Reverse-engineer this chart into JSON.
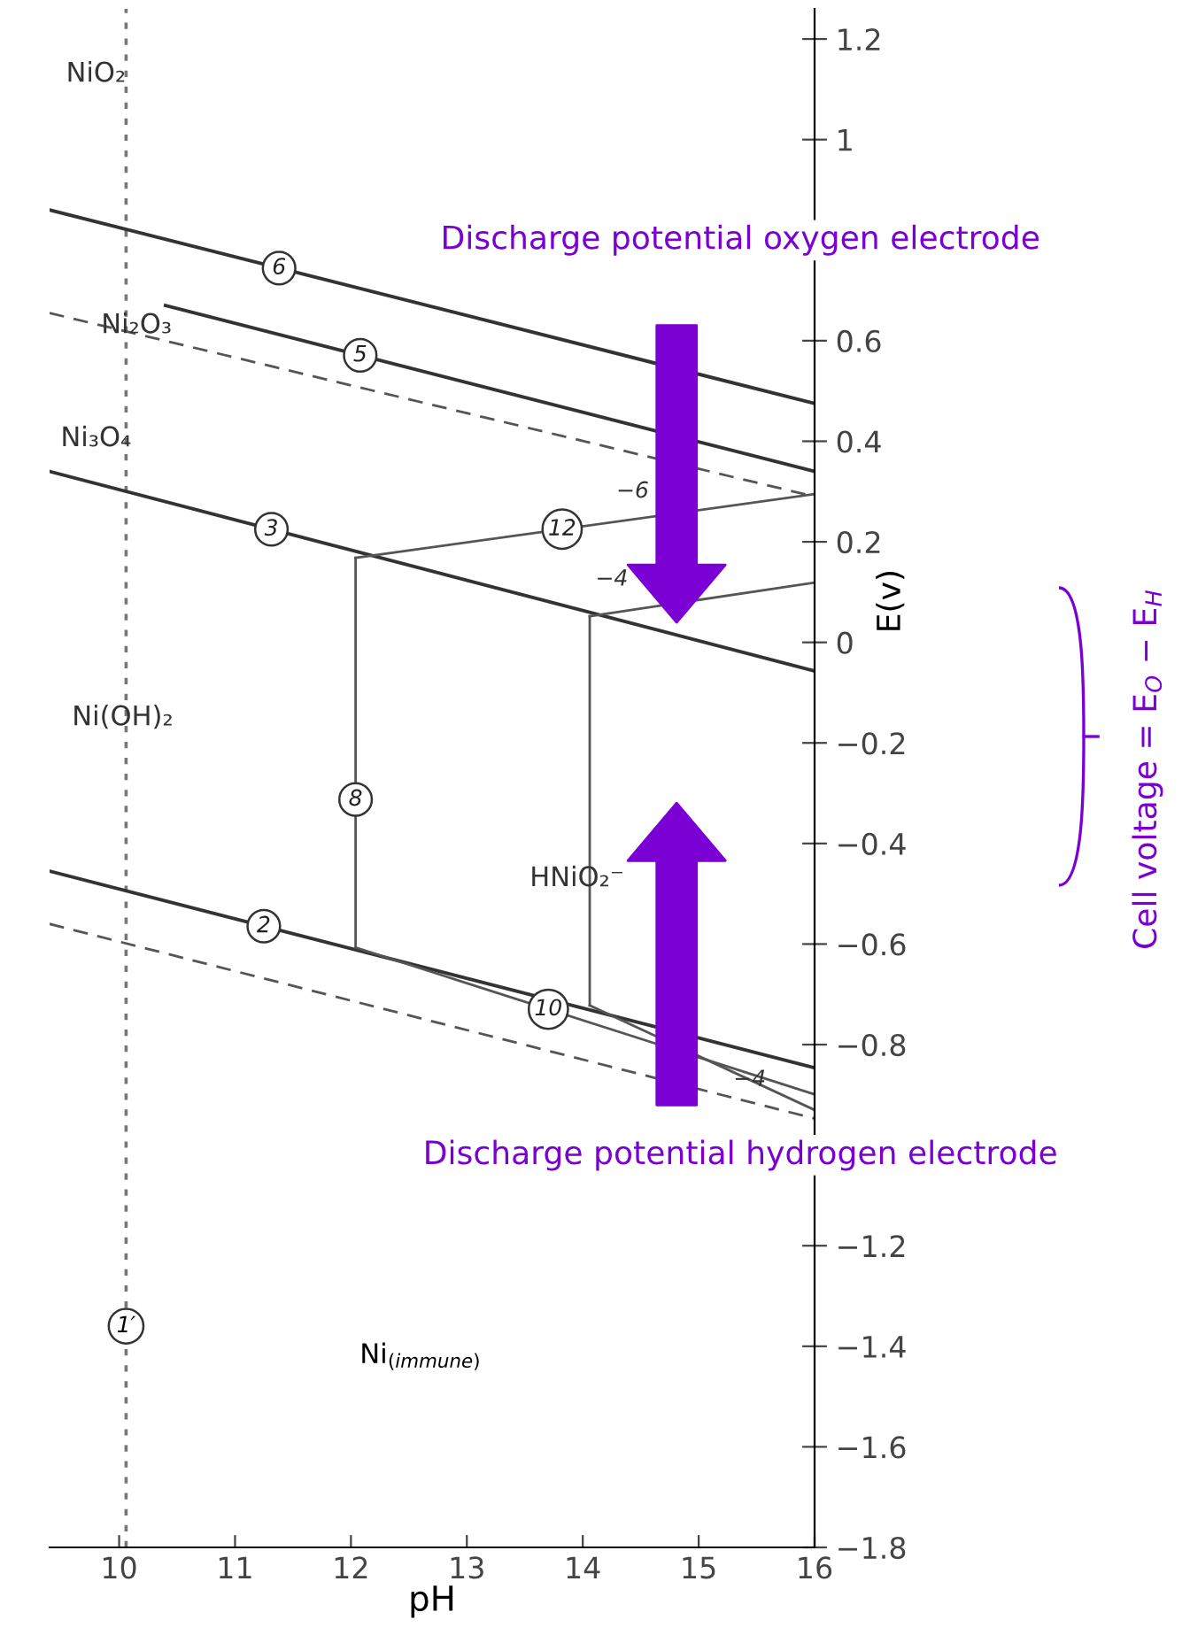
{
  "chart_data": {
    "type": "line",
    "xlabel": "pH",
    "ylabel": "E(v)",
    "xlim": [
      9.4,
      16
    ],
    "xticks": [
      10,
      11,
      12,
      13,
      14,
      15,
      16
    ],
    "ylim": [
      -1.8,
      1.26
    ],
    "yticks": [
      {
        "value": -1.8,
        "label": "−1.8"
      },
      {
        "value": -1.6,
        "label": "−1.6"
      },
      {
        "value": -1.4,
        "label": "−1.4"
      },
      {
        "value": -1.2,
        "label": "−1.2"
      },
      {
        "value": -0.8,
        "label": "−0.8"
      },
      {
        "value": -0.6,
        "label": "−0.6"
      },
      {
        "value": -0.4,
        "label": "−0.4"
      },
      {
        "value": -0.2,
        "label": "−0.2"
      },
      0,
      0.2,
      0.4,
      0.6,
      1,
      1.2
    ],
    "grid": false,
    "legend": false,
    "marker": "none",
    "series": [
      {
        "name": "6",
        "color": "#333333",
        "x": [
          9.4,
          16
        ],
        "values": [
          0.86,
          0.475
        ],
        "line_style": "solid"
      },
      {
        "name": "5",
        "color": "#333333",
        "x": [
          10.4,
          16
        ],
        "values": [
          0.67,
          0.34
        ],
        "line_style": "solid"
      },
      {
        "color": "#555555",
        "x": [
          9.4,
          16
        ],
        "values": [
          0.655,
          0.29
        ],
        "line_style": "dashed"
      },
      {
        "name": "3",
        "color": "#333333",
        "x": [
          9.4,
          16
        ],
        "values": [
          0.34,
          -0.057
        ],
        "line_style": "solid"
      },
      {
        "name": "12",
        "color": "#555555",
        "x": [
          12.04,
          16
        ],
        "values": [
          0.168,
          0.295
        ],
        "line_style": "solid"
      },
      {
        "color": "#555555",
        "x": [
          14.06,
          16
        ],
        "values": [
          0.052,
          0.119
        ],
        "line_style": "solid"
      },
      {
        "name": "8",
        "color": "#555555",
        "x": [
          12.04,
          12.04
        ],
        "values": [
          0.168,
          -0.607
        ],
        "line_style": "solid"
      },
      {
        "color": "#555555",
        "x": [
          14.06,
          14.06
        ],
        "values": [
          0.052,
          -0.722
        ],
        "line_style": "solid"
      },
      {
        "name": "2",
        "color": "#333333",
        "x": [
          9.4,
          16
        ],
        "values": [
          -0.455,
          -0.846
        ],
        "line_style": "solid"
      },
      {
        "color": "#555555",
        "x": [
          9.4,
          16
        ],
        "values": [
          -0.56,
          -0.947
        ],
        "line_style": "dashed"
      },
      {
        "name": "10",
        "color": "#555555",
        "x": [
          12.04,
          16
        ],
        "values": [
          -0.607,
          -0.899
        ],
        "line_style": "solid"
      },
      {
        "color": "#555555",
        "x": [
          14.06,
          16
        ],
        "values": [
          -0.722,
          -0.93
        ],
        "line_style": "solid"
      }
    ],
    "ref_lines": [
      {
        "axis": "x",
        "value": 10.06,
        "label": "1′",
        "color": "#777777",
        "line_style": "dotted"
      }
    ],
    "annotations": [
      "NiO₂",
      "Ni₂O₃",
      "Ni₃O₄",
      "Ni(OH)₂",
      "HNiO₂⁻",
      "Ni$_{(immune)}$",
      "−6",
      "−4",
      "−4",
      "Discharge potential oxygen electrode",
      "Discharge potential hydrogen electrode",
      "Cell voltage = E$_{O}$ − E$_{H}$"
    ]
  }
}
